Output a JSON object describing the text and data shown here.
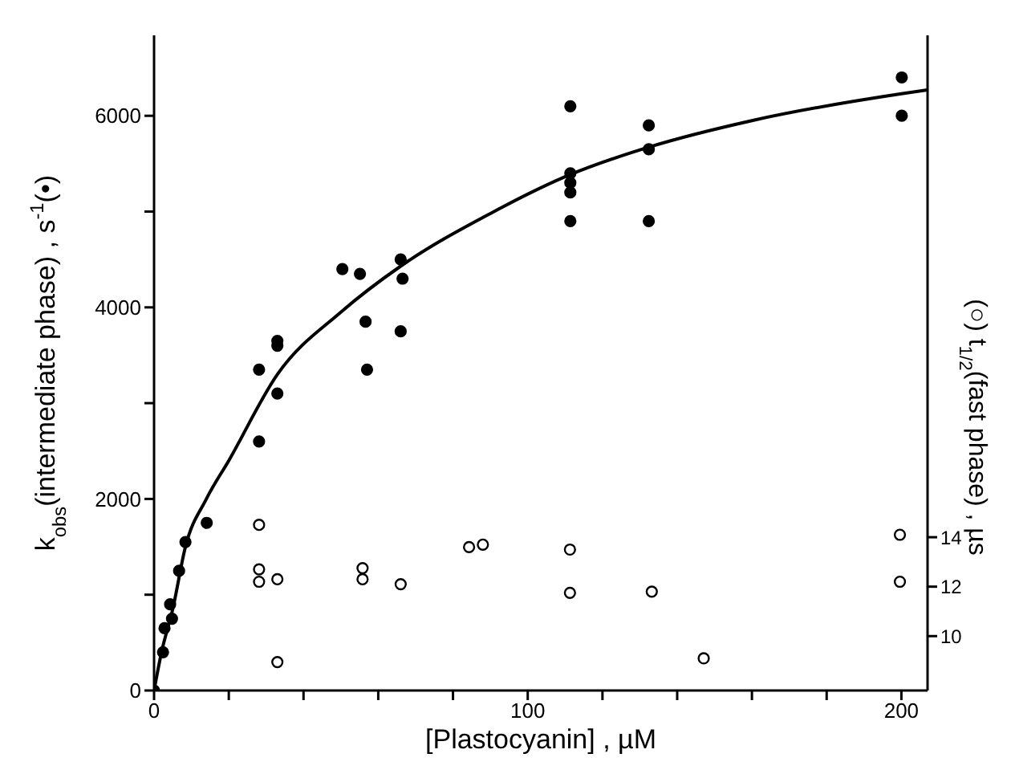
{
  "chart_data": {
    "type": "scatter",
    "xlabel": "[Plastocyanin] , µM",
    "ylabel": "k$_{obs}$(intermediate phase) , s$^{-1}$(•)",
    "y2label": "(○) t$_{1/2}$(fast phase) , µs",
    "xlim": [
      0,
      207
    ],
    "xticks": [
      0,
      {
        "value": 20,
        "label": null
      },
      {
        "value": 40,
        "label": null
      },
      {
        "value": 60,
        "label": null
      },
      {
        "value": 80,
        "label": null
      },
      100,
      {
        "value": 120,
        "label": null
      },
      {
        "value": 140,
        "label": null
      },
      {
        "value": 160,
        "label": null
      },
      {
        "value": 180,
        "label": null
      },
      200
    ],
    "ylim": [
      0,
      6840
    ],
    "yticks": [
      0,
      {
        "value": 1000,
        "label": null
      },
      2000,
      {
        "value": 3000,
        "label": null
      },
      4000,
      {
        "value": 5000,
        "label": null
      },
      6000
    ],
    "y2lim": [
      7.8,
      34.3
    ],
    "y2ticks": [
      10,
      12,
      14
    ],
    "grid": false,
    "marker": "circle",
    "series": [
      {
        "color": "#000000",
        "x": [
          0,
          2.4,
          2.8,
          4.3,
          4.8,
          6.7,
          8.4,
          14.1,
          28.1,
          28.1,
          33,
          33,
          33,
          50.4,
          55.1,
          56.6,
          57,
          66,
          66.5,
          66,
          111.4,
          111.4,
          111.4,
          111.4,
          111.4,
          132.4,
          132.4,
          132.4,
          200.1,
          200.1
        ],
        "values": [
          0,
          400,
          650,
          900,
          750,
          1250,
          1550,
          1750,
          3350,
          2600,
          3650,
          3600,
          3100,
          4400,
          4350,
          3850,
          3350,
          4500,
          4300,
          3750,
          6100,
          5400,
          5300,
          5200,
          4900,
          5900,
          5650,
          4900,
          6400,
          6000
        ]
      },
      {
        "color": "#000000",
        "axis": "y2",
        "x": [
          28.1,
          28.1,
          28.1,
          33,
          33,
          55.8,
          55.8,
          66,
          84.3,
          88,
          111.3,
          111.3,
          133.2,
          147.1,
          199.6,
          199.6
        ],
        "values": [
          14.5,
          12.7,
          12.2,
          12.3,
          8.95,
          12.75,
          12.3,
          12.1,
          13.6,
          13.7,
          13.5,
          11.75,
          11.8,
          9.1,
          14.1,
          12.2
        ]
      },
      {
        "type": "line",
        "color": "#000000",
        "marker": "none",
        "x": [
          0,
          2,
          5,
          8.4,
          14,
          20,
          33,
          50,
          66,
          90,
          111,
          133,
          160,
          200,
          207
        ],
        "values": [
          0,
          400,
          850,
          1500,
          2000,
          2400,
          3300,
          3950,
          4430,
          4980,
          5380,
          5680,
          5950,
          6230,
          6270
        ]
      }
    ]
  }
}
